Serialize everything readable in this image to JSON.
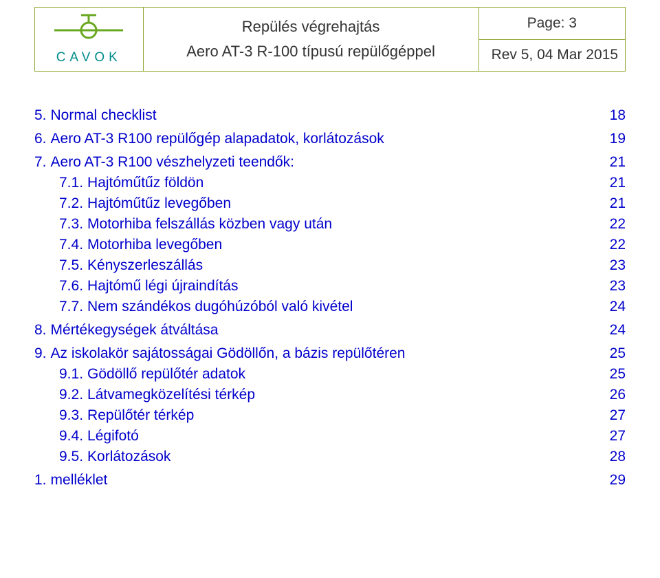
{
  "header": {
    "logo_text": "CAVOK",
    "logo_color": "#008c8c",
    "airplane_color": "#6aa822",
    "title_line1": "Repülés végrehajtás",
    "title_line2": "Aero AT-3 R-100 típusú repülőgéppel",
    "page_label": "Page: 3",
    "rev_label": "Rev 5, 04 Mar 2015",
    "border_color": "#8fa830"
  },
  "toc_color": "#0000cc",
  "toc": [
    {
      "level": 1,
      "num": "5.",
      "label": "Normal checklist",
      "page": "18",
      "section": true
    },
    {
      "level": 1,
      "num": "6.",
      "label": "Aero AT-3 R100 repülőgép alapadatok, korlátozások",
      "page": "19",
      "section": true
    },
    {
      "level": 1,
      "num": "7.",
      "label": "Aero AT-3 R100 vészhelyzeti teendők:",
      "page": "21",
      "section": true
    },
    {
      "level": 2,
      "num": "7.1.",
      "label": "Hajtóműtűz földön",
      "page": "21"
    },
    {
      "level": 2,
      "num": "7.2.",
      "label": "Hajtóműtűz levegőben",
      "page": "21"
    },
    {
      "level": 2,
      "num": "7.3.",
      "label": "Motorhiba felszállás közben vagy után",
      "page": "22"
    },
    {
      "level": 2,
      "num": "7.4.",
      "label": "Motorhiba levegőben",
      "page": "22"
    },
    {
      "level": 2,
      "num": "7.5.",
      "label": "Kényszerleszállás",
      "page": "23"
    },
    {
      "level": 2,
      "num": "7.6.",
      "label": "Hajtómű légi újraindítás",
      "page": "23"
    },
    {
      "level": 2,
      "num": "7.7.",
      "label": "Nem szándékos dugóhúzóból való kivétel",
      "page": "24"
    },
    {
      "level": 1,
      "num": "8.",
      "label": "Mértékegységek átváltása",
      "page": "24",
      "section": true
    },
    {
      "level": 1,
      "num": "9.",
      "label": "Az iskolakör sajátosságai Gödöllőn, a bázis repülőtéren",
      "page": "25",
      "section": true
    },
    {
      "level": 2,
      "num": "9.1.",
      "label": "Gödöllő  repülőtér  adatok",
      "page": "25"
    },
    {
      "level": 2,
      "num": "9.2.",
      "label": "Látvamegközelítési térkép",
      "page": "26"
    },
    {
      "level": 2,
      "num": "9.3.",
      "label": "Repülőtér térkép",
      "page": "27"
    },
    {
      "level": 2,
      "num": "9.4.",
      "label": "Légifotó",
      "page": "27"
    },
    {
      "level": 2,
      "num": "9.5.",
      "label": "Korlátozások",
      "page": "28"
    },
    {
      "level": 1,
      "num": "1.",
      "label": "melléklet",
      "page": "29",
      "section": true
    }
  ]
}
